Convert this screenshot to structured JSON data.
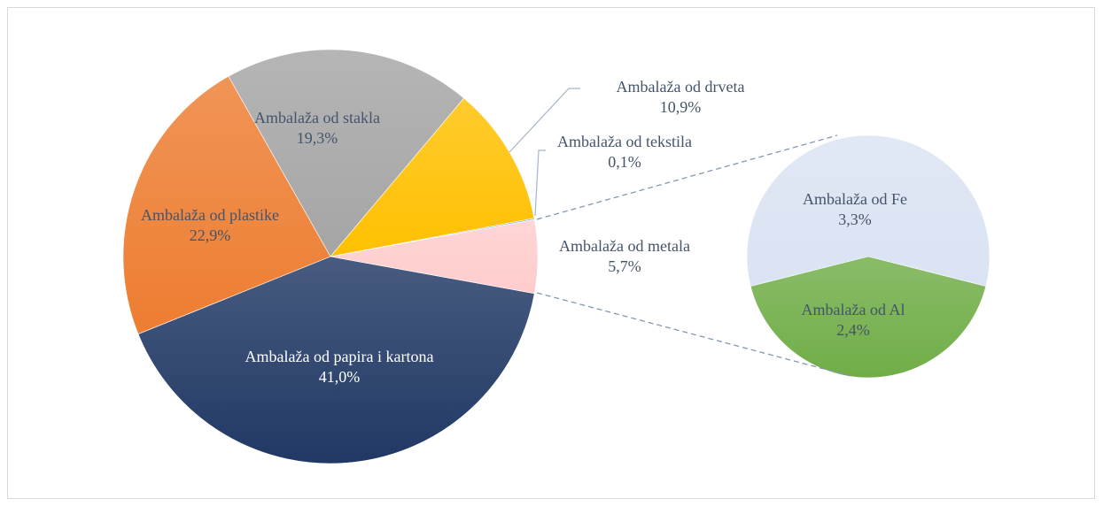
{
  "chart_data": [
    {
      "type": "pie",
      "categories": [
        "Ambalaža od papira i kartona",
        "Ambalaža od plastike",
        "Ambalaža od stakla",
        "Ambalaža od drveta",
        "Ambalaža od tekstila",
        "Ambalaža od metala"
      ],
      "values": [
        41.0,
        22.9,
        19.3,
        10.9,
        0.1,
        5.7
      ],
      "value_labels": [
        "41,0%",
        "22,9%",
        "19,3%",
        "10,9%",
        "0,1%",
        "5,7%"
      ],
      "colors": [
        "#203864",
        "#ed7d31",
        "#a5a5a5",
        "#ffc000",
        "#5b9bd5",
        "#ffcccc"
      ]
    },
    {
      "type": "pie",
      "categories": [
        "Ambalaža od Fe",
        "Ambalaža od Al"
      ],
      "values": [
        3.3,
        2.4
      ],
      "value_labels": [
        "3,3%",
        "2,4%"
      ],
      "colors": [
        "#dae3f3",
        "#70ad47"
      ]
    }
  ]
}
